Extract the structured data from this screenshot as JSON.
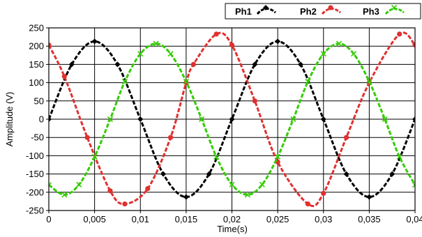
{
  "chart_data": {
    "type": "line",
    "xlabel": "Time(s)",
    "ylabel": "Amplitude (V)",
    "xlim": [
      0,
      0.04
    ],
    "ylim": [
      -250,
      250
    ],
    "x_ticks": [
      "0",
      "0,005",
      "0,01",
      "0,015",
      "0,02",
      "0,025",
      "0,03",
      "0,035",
      "0,04"
    ],
    "y_ticks": [
      "250",
      "200",
      "150",
      "100",
      "50",
      "0",
      "-50",
      "-100",
      "-150",
      "-200",
      "-250"
    ],
    "grid": true,
    "legend_position": "top-right",
    "series": [
      {
        "name": "Ph1",
        "color": "#000000",
        "marker": "diamond",
        "x": [
          0,
          0.0025,
          0.005,
          0.0075,
          0.01,
          0.0125,
          0.015,
          0.0175,
          0.02,
          0.0225,
          0.025,
          0.0275,
          0.03,
          0.0325,
          0.035,
          0.0375,
          0.04
        ],
        "y": [
          0,
          150,
          213,
          150,
          0,
          -150,
          -213,
          -150,
          0,
          150,
          213,
          150,
          0,
          -150,
          -213,
          -150,
          0
        ]
      },
      {
        "name": "Ph2",
        "color": "#e03030",
        "marker": "circle",
        "x": [
          0,
          0.0017,
          0.0042,
          0.0067,
          0.0083,
          0.0108,
          0.0133,
          0.015,
          0.0158,
          0.0183,
          0.02,
          0.0225,
          0.025,
          0.0283,
          0.03,
          0.0325,
          0.035,
          0.0383,
          0.04
        ],
        "y": [
          203,
          117,
          -50,
          -196,
          -232,
          -190,
          -50,
          100,
          150,
          233,
          203,
          50,
          -117,
          -232,
          -203,
          -50,
          100,
          233,
          203
        ]
      },
      {
        "name": "Ph3",
        "color": "#33cc00",
        "marker": "x",
        "x": [
          0,
          0.0017,
          0.0033,
          0.005,
          0.0067,
          0.0083,
          0.01,
          0.0117,
          0.0133,
          0.015,
          0.0167,
          0.0183,
          0.02,
          0.0217,
          0.0233,
          0.025,
          0.0267,
          0.0283,
          0.03,
          0.0317,
          0.0333,
          0.035,
          0.0367,
          0.0383,
          0.04
        ],
        "y": [
          -180,
          -207,
          -179,
          -103,
          0,
          103,
          179,
          207,
          179,
          103,
          0,
          -103,
          -179,
          -207,
          -179,
          -103,
          0,
          103,
          179,
          207,
          179,
          103,
          0,
          -103,
          -180
        ]
      }
    ]
  }
}
